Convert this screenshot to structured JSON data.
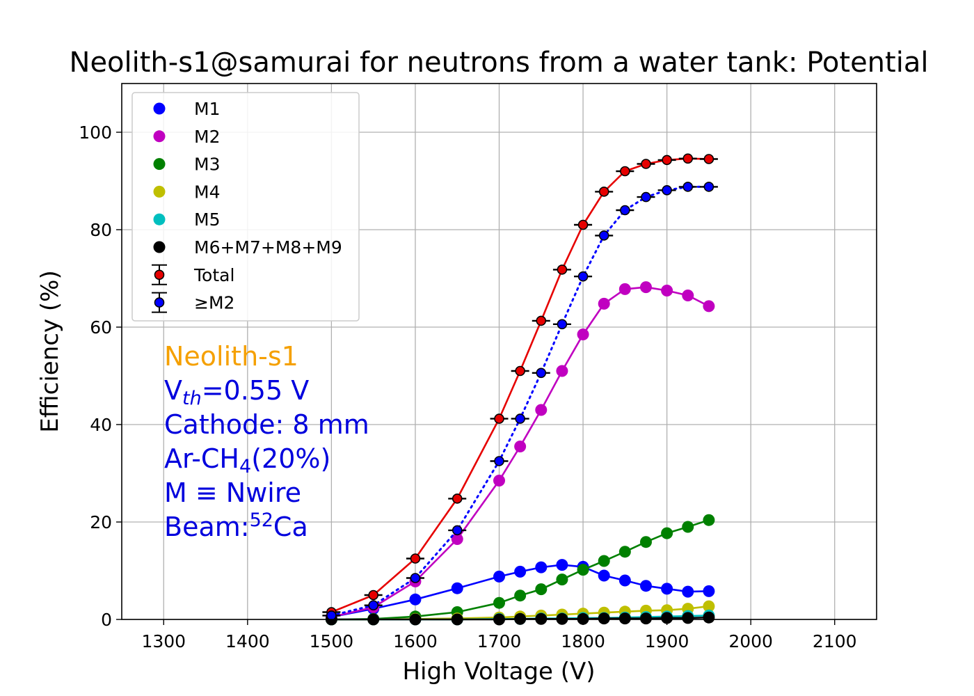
{
  "chart_data": {
    "type": "line",
    "title": "Neolith-s1@samurai for neutrons from a water tank: Potential",
    "xlabel": "High Voltage (V)",
    "ylabel": "Efficiency (%)",
    "xlim": [
      1250,
      2150
    ],
    "ylim": [
      0,
      110
    ],
    "xticks": [
      1300,
      1400,
      1500,
      1600,
      1700,
      1800,
      1900,
      2000,
      2100
    ],
    "yticks": [
      0,
      20,
      40,
      60,
      80,
      100
    ],
    "grid": true,
    "legend_position": "top-left",
    "x": [
      1500,
      1550,
      1600,
      1650,
      1700,
      1725,
      1750,
      1775,
      1800,
      1825,
      1850,
      1875,
      1900,
      1925,
      1950
    ],
    "series": [
      {
        "name": "M1",
        "color": "#0000ff",
        "marker": "dot",
        "line": "solid",
        "values": [
          0.5,
          2.2,
          4.1,
          6.4,
          8.8,
          9.8,
          10.7,
          11.2,
          10.8,
          9.0,
          8.0,
          6.9,
          6.3,
          5.7,
          5.8
        ]
      },
      {
        "name": "M2",
        "color": "#c000c0",
        "marker": "dot",
        "line": "solid",
        "values": [
          0.5,
          2.5,
          7.8,
          16.5,
          28.5,
          35.5,
          43.0,
          51.0,
          58.5,
          64.8,
          67.8,
          68.2,
          67.5,
          66.5,
          64.3
        ]
      },
      {
        "name": "M3",
        "color": "#008000",
        "marker": "dot",
        "line": "solid",
        "values": [
          0.0,
          0.1,
          0.6,
          1.5,
          3.4,
          4.9,
          6.2,
          8.2,
          10.2,
          12.0,
          13.9,
          15.9,
          17.7,
          19.0,
          20.4
        ]
      },
      {
        "name": "M4",
        "color": "#bfbf00",
        "marker": "dot",
        "line": "solid",
        "values": [
          0.0,
          0.0,
          0.1,
          0.2,
          0.4,
          0.6,
          0.8,
          1.0,
          1.2,
          1.4,
          1.6,
          1.8,
          1.9,
          2.2,
          2.7
        ]
      },
      {
        "name": "M5",
        "color": "#00bfbf",
        "marker": "dot",
        "line": "solid",
        "values": [
          0.0,
          0.0,
          0.0,
          0.0,
          0.1,
          0.1,
          0.2,
          0.2,
          0.3,
          0.3,
          0.4,
          0.5,
          0.6,
          0.7,
          0.8
        ]
      },
      {
        "name": "M6+M7+M8+M9",
        "color": "#000000",
        "marker": "dot",
        "line": "solid",
        "values": [
          0.0,
          0.0,
          0.0,
          0.0,
          0.0,
          0.1,
          0.1,
          0.1,
          0.1,
          0.2,
          0.2,
          0.2,
          0.3,
          0.3,
          0.4
        ]
      },
      {
        "name": "Total",
        "color": "#e60000",
        "marker": "errorbar",
        "line": "solid",
        "values": [
          1.5,
          5.0,
          12.5,
          24.8,
          41.2,
          51.0,
          61.3,
          71.8,
          81.0,
          87.8,
          92.0,
          93.5,
          94.3,
          94.6,
          94.5
        ]
      },
      {
        "name": "≥M2",
        "color": "#0000ff",
        "marker": "errorbar",
        "line": "dotted",
        "values": [
          0.8,
          2.9,
          8.5,
          18.3,
          32.5,
          41.2,
          50.6,
          60.6,
          70.4,
          78.8,
          84.0,
          86.7,
          88.1,
          88.8,
          88.8
        ]
      }
    ],
    "annotations": {
      "detector": "Neolith-s1",
      "vth_prefix": "V",
      "vth_sub": "th",
      "vth_suffix": "=0.55 V",
      "cathode": "Cathode: 8 mm",
      "gas_prefix": "Ar-CH",
      "gas_sub": "4",
      "gas_suffix": "(20%)",
      "mdef": "M ≡ Nwire",
      "beam_prefix": "Beam:",
      "beam_sup": "52",
      "beam_suffix": "Ca",
      "detector_color": "#f5a000",
      "text_color": "#0000dd"
    }
  }
}
